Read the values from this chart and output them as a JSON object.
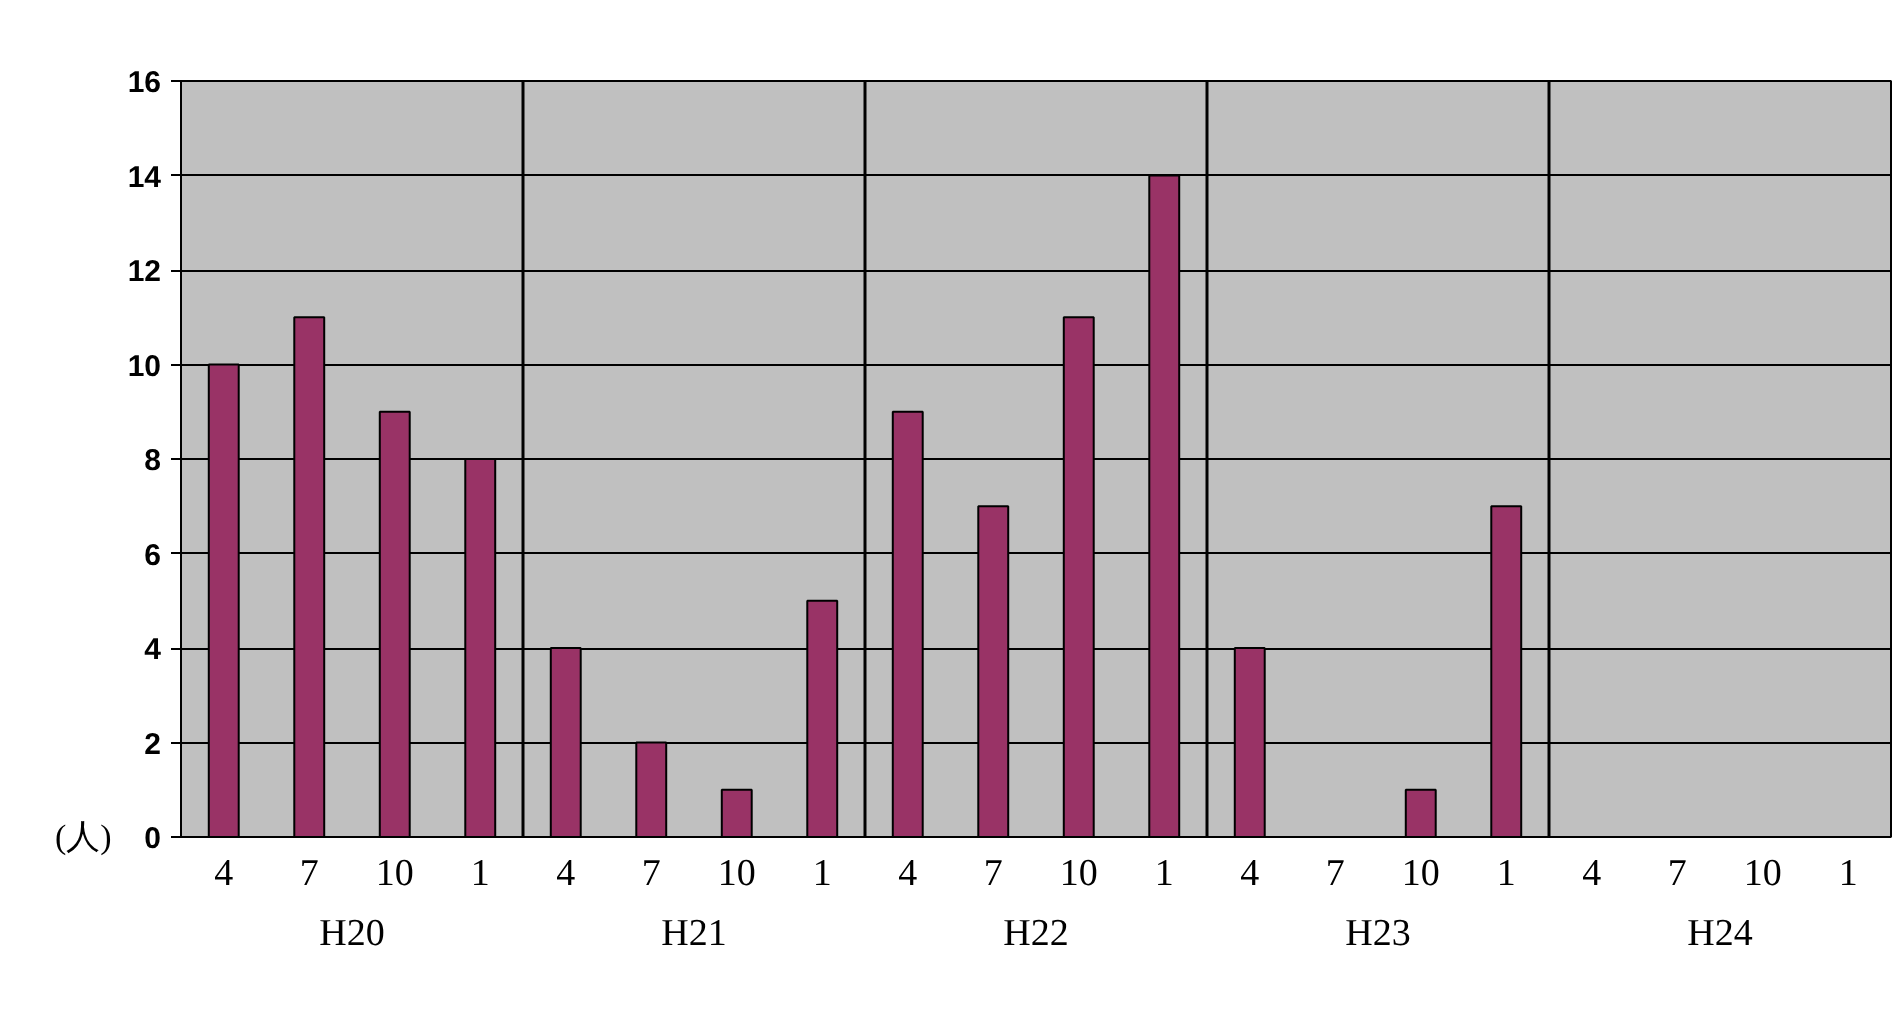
{
  "chart_data": {
    "type": "bar",
    "categories": [
      "4",
      "7",
      "10",
      "1",
      "4",
      "7",
      "10",
      "1",
      "4",
      "7",
      "10",
      "1",
      "4",
      "7",
      "10",
      "1",
      "4",
      "7",
      "10",
      "1"
    ],
    "values": [
      10,
      11,
      9,
      8,
      4,
      2,
      1,
      5,
      9,
      7,
      11,
      14,
      4,
      null,
      1,
      7,
      null,
      null,
      null,
      null
    ],
    "color": "#993366",
    "ylabel": "(人)",
    "annotations": [
      "H20",
      "H21",
      "H22",
      "H23",
      "H24"
    ],
    "ylim": [
      0,
      16
    ],
    "yticks": [
      0,
      2,
      4,
      6,
      8,
      10,
      12,
      14,
      16
    ],
    "grid": "y"
  }
}
